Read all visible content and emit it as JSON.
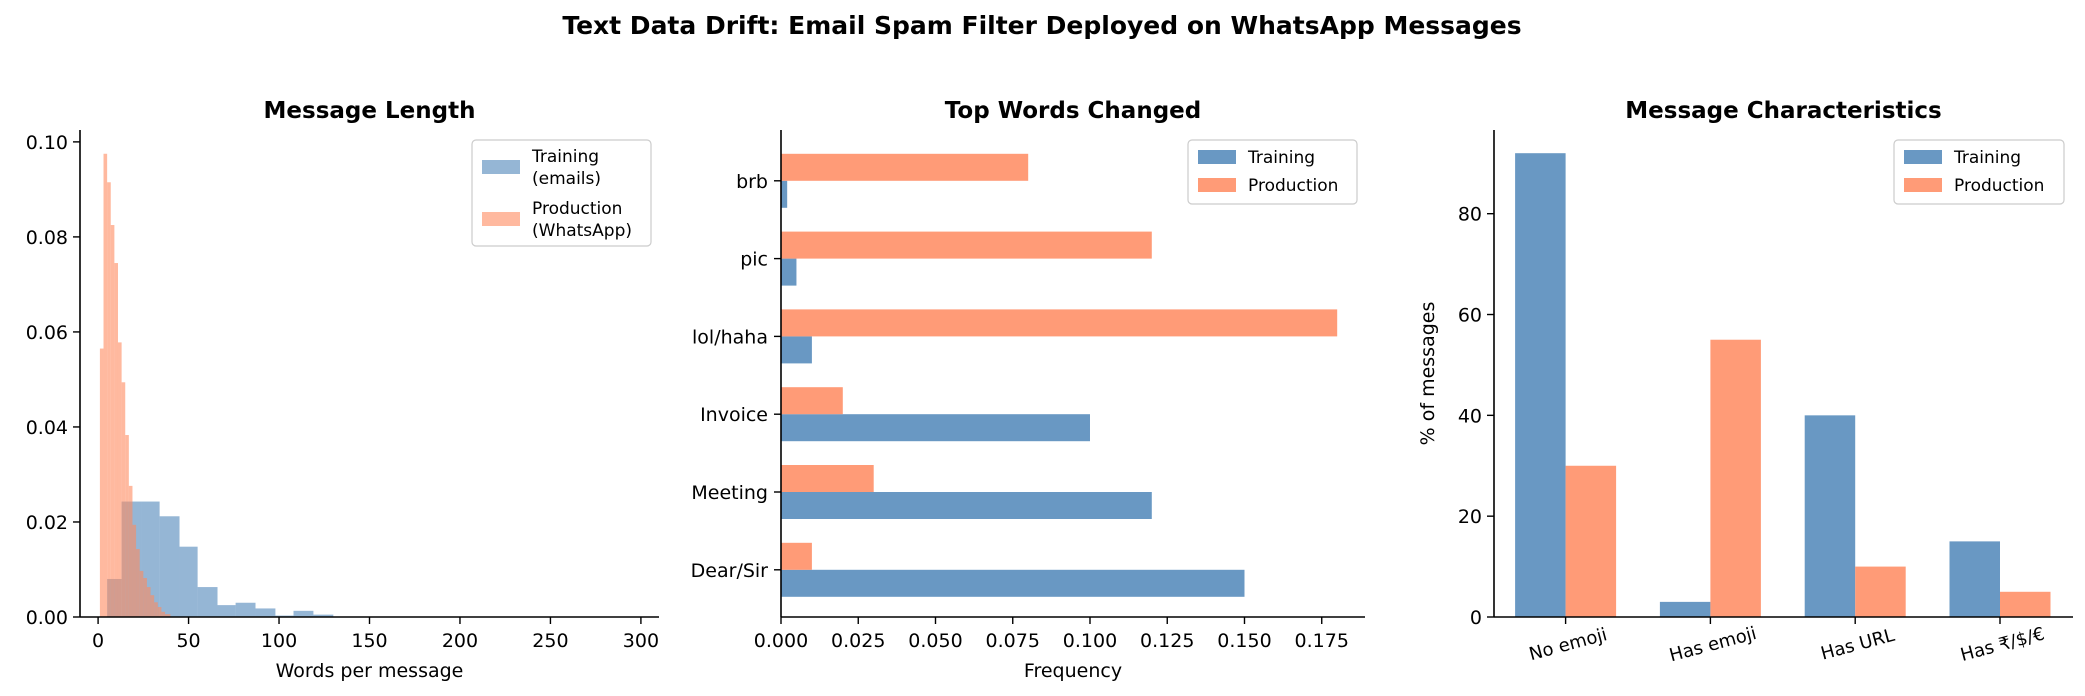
{
  "figure": {
    "suptitle": "Text Data Drift: Email Spam Filter Deployed on WhatsApp Messages",
    "colors": {
      "training": "#4f86b9",
      "production": "#ff8a5f",
      "axis": "#000000"
    }
  },
  "chart_data": [
    {
      "type": "bar",
      "subtype": "histogram",
      "title": "Message Length",
      "xlabel": "Words per message",
      "ylabel": "",
      "xlim": [
        -10,
        310
      ],
      "ylim": [
        0,
        0.1025
      ],
      "xticks": [
        0,
        50,
        100,
        150,
        200,
        250,
        300
      ],
      "yticks": [
        0.0,
        0.02,
        0.04,
        0.06,
        0.08,
        0.1
      ],
      "xtick_labels": [
        "0",
        "50",
        "100",
        "150",
        "200",
        "250",
        "300"
      ],
      "ytick_labels": [
        "0.00",
        "0.02",
        "0.04",
        "0.06",
        "0.08",
        "0.10"
      ],
      "legend": {
        "position": "top-right",
        "entries": [
          {
            "label_lines": [
              "Training",
              "(emails)"
            ]
          },
          {
            "label_lines": [
              "Production",
              "(WhatsApp)"
            ]
          }
        ]
      },
      "series": [
        {
          "name": "Training (emails)",
          "bins": [
            [
              5,
              13
            ],
            [
              13,
              24
            ],
            [
              24,
              34
            ],
            [
              34,
              45
            ],
            [
              45,
              55
            ],
            [
              55,
              66
            ],
            [
              66,
              76
            ],
            [
              76,
              87
            ],
            [
              87,
              98
            ],
            [
              98,
              108
            ],
            [
              108,
              119
            ],
            [
              119,
              130
            ]
          ],
          "values": [
            0.008,
            0.0243,
            0.0243,
            0.0212,
            0.0148,
            0.0063,
            0.0025,
            0.003,
            0.0018,
            0.0003,
            0.0013,
            0.0005
          ]
        },
        {
          "name": "Production (WhatsApp)",
          "bins": [
            [
              1,
              3
            ],
            [
              3,
              5
            ],
            [
              5,
              7
            ],
            [
              7,
              9
            ],
            [
              9,
              11
            ],
            [
              11,
              13
            ],
            [
              13,
              15
            ],
            [
              15,
              17
            ],
            [
              17,
              19
            ],
            [
              19,
              21
            ],
            [
              21,
              23
            ],
            [
              23,
              25
            ],
            [
              25,
              27
            ],
            [
              27,
              29
            ],
            [
              29,
              31
            ],
            [
              31,
              33
            ],
            [
              33,
              35
            ],
            [
              35,
              37
            ],
            [
              37,
              40
            ]
          ],
          "values": [
            0.0565,
            0.0975,
            0.0915,
            0.0825,
            0.0745,
            0.0578,
            0.0494,
            0.0383,
            0.0276,
            0.0194,
            0.0143,
            0.0097,
            0.0082,
            0.0063,
            0.0046,
            0.0031,
            0.0021,
            0.0011,
            0.0006
          ]
        }
      ]
    },
    {
      "type": "bar",
      "orientation": "horizontal",
      "title": "Top Words Changed",
      "xlabel": "Frequency",
      "ylabel": "",
      "xlim": [
        0,
        0.189
      ],
      "categories": [
        "Dear/Sir",
        "Meeting",
        "Invoice",
        "lol/haha",
        "pic",
        "brb"
      ],
      "xticks": [
        0.0,
        0.025,
        0.05,
        0.075,
        0.1,
        0.125,
        0.15,
        0.175
      ],
      "xtick_labels": [
        "0.000",
        "0.025",
        "0.050",
        "0.075",
        "0.100",
        "0.125",
        "0.150",
        "0.175"
      ],
      "legend": {
        "position": "top-right",
        "entries": [
          {
            "label_lines": [
              "Training"
            ]
          },
          {
            "label_lines": [
              "Production"
            ]
          }
        ]
      },
      "series": [
        {
          "name": "Training",
          "values": [
            0.15,
            0.12,
            0.1,
            0.01,
            0.005,
            0.002
          ]
        },
        {
          "name": "Production",
          "values": [
            0.01,
            0.03,
            0.02,
            0.18,
            0.12,
            0.08
          ]
        }
      ]
    },
    {
      "type": "bar",
      "title": "Message Characteristics",
      "xlabel": "",
      "ylabel": "% of messages",
      "ylim": [
        0,
        96.6
      ],
      "categories": [
        "No emoji",
        "Has emoji",
        "Has URL",
        "Has ₹/$/€"
      ],
      "yticks": [
        0,
        20,
        40,
        60,
        80
      ],
      "ytick_labels": [
        "0",
        "20",
        "40",
        "60",
        "80"
      ],
      "legend": {
        "position": "top-right",
        "entries": [
          {
            "label_lines": [
              "Training"
            ]
          },
          {
            "label_lines": [
              "Production"
            ]
          }
        ]
      },
      "series": [
        {
          "name": "Training",
          "values": [
            92,
            3,
            40,
            15
          ]
        },
        {
          "name": "Production",
          "values": [
            30,
            55,
            10,
            5
          ]
        }
      ]
    }
  ]
}
